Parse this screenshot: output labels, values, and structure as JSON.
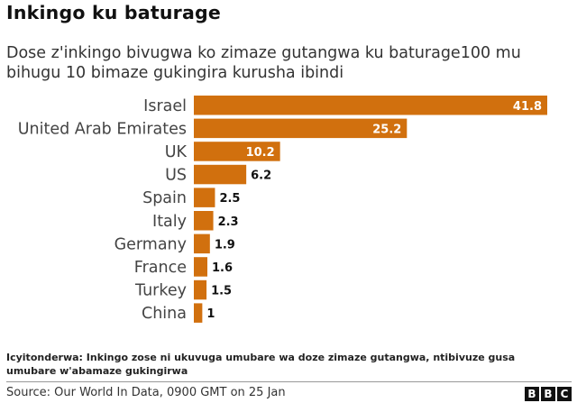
{
  "header": {
    "title": "Inkingo ku baturage",
    "subtitle": "Dose z'inkingo bivugwa ko zimaze gutangwa ku baturage100 mu bihugu 10 bimaze gukingira kurusha ibindi"
  },
  "chart_data": {
    "type": "bar",
    "orientation": "horizontal",
    "title": "Inkingo ku baturage",
    "subtitle": "Dose z'inkingo bivugwa ko zimaze gutangwa ku baturage100 mu bihugu 10 bimaze gukingira kurusha ibindi",
    "categories": [
      "Israel",
      "United Arab Emirates",
      "UK",
      "US",
      "Spain",
      "Italy",
      "Germany",
      "France",
      "Turkey",
      "China"
    ],
    "values": [
      41.8,
      25.2,
      10.2,
      6.2,
      2.5,
      2.3,
      1.9,
      1.6,
      1.5,
      1
    ],
    "value_labels": [
      "41.8",
      "25.2",
      "10.2",
      "6.2",
      "2.5",
      "2.3",
      "1.9",
      "1.6",
      "1.5",
      "1"
    ],
    "xlim": [
      0,
      41.8
    ],
    "bar_color": "#d1700e",
    "grid": false,
    "xlabel": "",
    "ylabel": ""
  },
  "footer": {
    "note": "Icyitonderwa: Inkingo zose ni ukuvuga umubare wa doze zimaze gutangwa, ntibivuze gusa umubare w'abamaze gukingirwa",
    "source": "Source: Our World In Data, 0900 GMT on 25 Jan",
    "logo_letters": [
      "B",
      "B",
      "C"
    ]
  }
}
